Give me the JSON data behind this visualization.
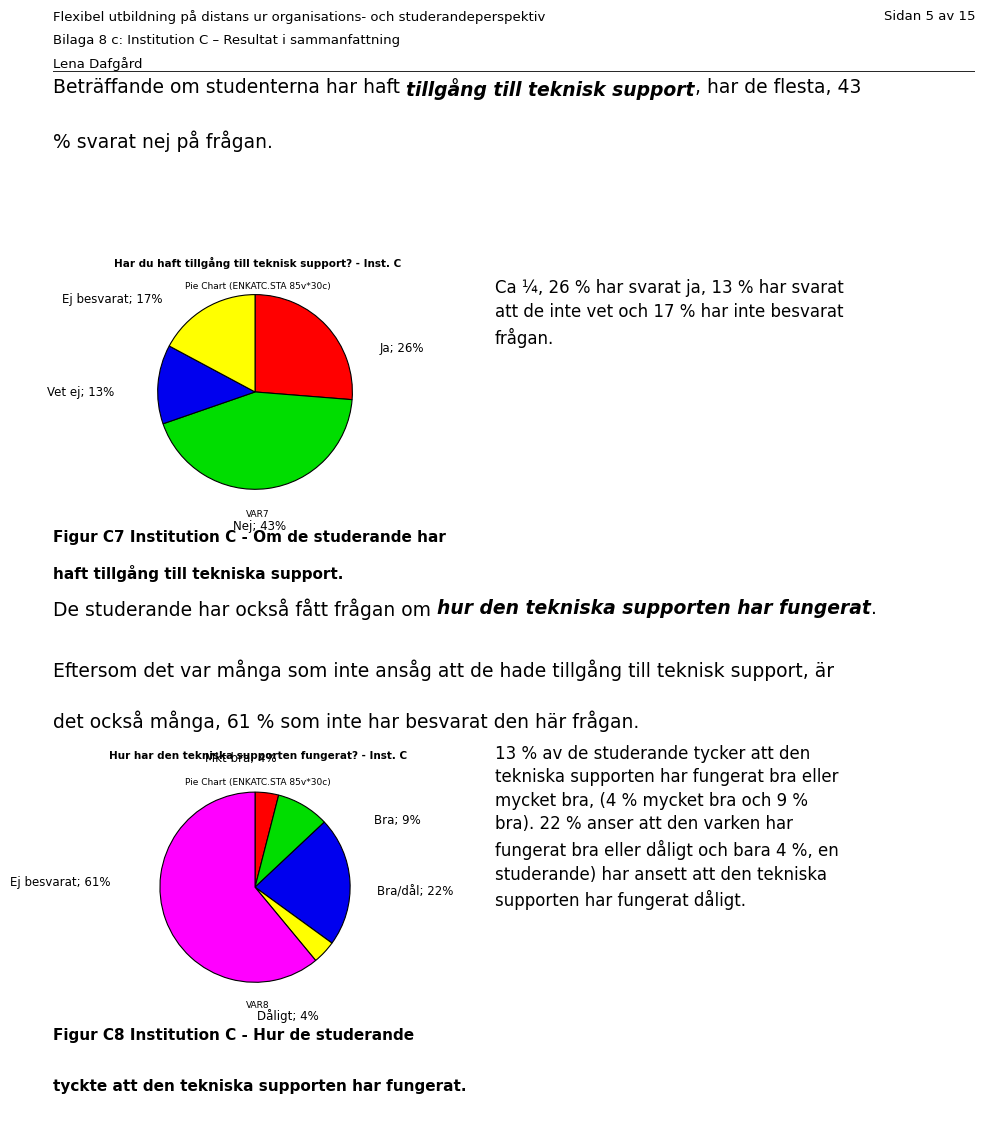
{
  "header_line1": "Flexibel utbildning på distans ur organisations- och studerandeperspektiv",
  "header_line1_right": "Sidan 5 av 15",
  "header_line2": "Bilaga 8 c: Institution C – Resultat i sammanfattning",
  "header_line3": "Lena Dafgård",
  "intro_pre": "Beträffande om studenterna har haft ",
  "intro_bold": "tillgång till teknisk support",
  "intro_post": ", har de flesta, 43\n% svarat nej på frågan.",
  "chart1_title": "Har du haft tillgång till teknisk support? - Inst. C",
  "chart1_subtitle": "Pie Chart (ENKATC.STA 85v*30c)",
  "chart1_slices": [
    26,
    43,
    13,
    17
  ],
  "chart1_colors": [
    "#FF0000",
    "#00DD00",
    "#0000EE",
    "#FFFF00"
  ],
  "chart1_startangle": 90,
  "chart1_var": "VAR7",
  "chart1_figcaption_line1": "Figur C7 Institution C - Om de studerande har",
  "chart1_figcaption_line2": "haft tillgång till tekniska support.",
  "chart1_aside": "Ca ¼, 26 % har svarat ja, 13 % har svarat\natt de inte vet och 17 % har inte besvarat\nfrågan.",
  "mid_pre": "De studerande har också fått frågan om ",
  "mid_bold": "hur den tekniska supporten har fungerat",
  "mid_post": ".",
  "mid_line2": "Eftersom det var många som inte ansåg att de hade tillgång till teknisk support, är",
  "mid_line3": "det också många, 61 % som inte har besvarat den här frågan.",
  "chart2_title": "Hur har den tekniska supporten fungerat? - Inst. C",
  "chart2_subtitle": "Pie Chart (ENKATC.STA 85v*30c)",
  "chart2_slices": [
    4,
    9,
    22,
    4,
    61
  ],
  "chart2_colors": [
    "#FF0000",
    "#00DD00",
    "#0000EE",
    "#FFFF00",
    "#FF00FF"
  ],
  "chart2_startangle": 90,
  "chart2_var": "VAR8",
  "chart2_figcaption_line1": "Figur C8 Institution C - Hur de studerande",
  "chart2_figcaption_line2": "tyckte att den tekniska supporten har fungerat.",
  "chart2_aside": "13 % av de studerande tycker att den\ntekniska supporten har fungerat bra eller\nmycket bra, (4 % mycket bra och 9 %\nbra). 22 % anser att den varken har\nfungerat bra eller dåligt och bara 4 %, en\nstuderande) har ansett att den tekniska\nsupporten har fungerat dåligt.",
  "bg_chart": "#FFFFF0",
  "bg_page": "#FFFFFF",
  "chart1_label_ja": [
    1.28,
    0.45,
    "Ja; 26%",
    "left"
  ],
  "chart1_label_nej": [
    0.05,
    -1.38,
    "Nej; 43%",
    "center"
  ],
  "chart1_label_vetej": [
    -1.45,
    0.0,
    "Vet ej; 13%",
    "right"
  ],
  "chart1_label_ejbesv": [
    -0.95,
    0.95,
    "Ej besvarat; 17%",
    "right"
  ],
  "chart2_label_mktbra": [
    -0.15,
    1.35,
    "Mkt bra; 4%",
    "center"
  ],
  "chart2_label_bra": [
    1.25,
    0.7,
    "Bra; 9%",
    "left"
  ],
  "chart2_label_bradal": [
    1.28,
    -0.05,
    "Bra/dål; 22%",
    "left"
  ],
  "chart2_label_daligt": [
    0.35,
    -1.35,
    "Dåligt; 4%",
    "center"
  ],
  "chart2_label_ejbesv": [
    -1.52,
    0.05,
    "Ej besvarat; 61%",
    "right"
  ]
}
